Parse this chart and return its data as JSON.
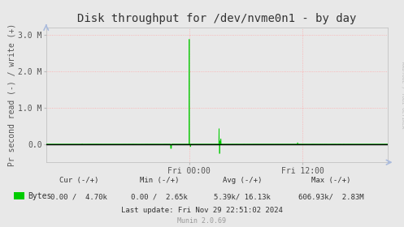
{
  "title": "Disk throughput for /dev/nvme0n1 - by day",
  "ylabel": "Pr second read (-) / write (+)",
  "background_color": "#e8e8e8",
  "plot_bg_color": "#e8e8e8",
  "grid_color": "#ffaaaa",
  "line_color": "#00cc00",
  "zero_line_color": "#000000",
  "yticks": [
    0.0,
    1000000,
    2000000,
    3000000
  ],
  "ytick_labels": [
    "0.0",
    "1.0 M",
    "2.0 M",
    "3.0 M"
  ],
  "ylim": [
    -500000,
    3200000
  ],
  "xtick_positions": [
    0.418,
    0.75
  ],
  "xtick_labels": [
    "Fri 00:00",
    "Fri 12:00"
  ],
  "legend_label": "Bytes",
  "legend_color": "#00cc00",
  "right_label": "RRDTOOL / TOBI OETIKER",
  "title_fontsize": 10,
  "axis_fontsize": 7,
  "legend_fontsize": 7,
  "footer_fontsize": 6.5
}
